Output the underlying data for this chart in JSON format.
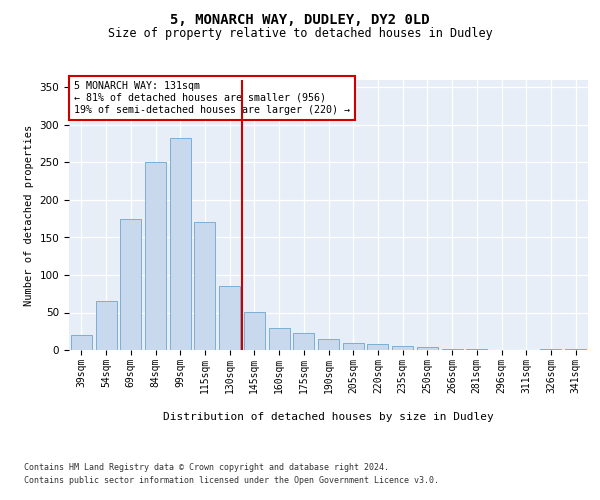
{
  "title1": "5, MONARCH WAY, DUDLEY, DY2 0LD",
  "title2": "Size of property relative to detached houses in Dudley",
  "xlabel": "Distribution of detached houses by size in Dudley",
  "ylabel": "Number of detached properties",
  "categories": [
    "39sqm",
    "54sqm",
    "69sqm",
    "84sqm",
    "99sqm",
    "115sqm",
    "130sqm",
    "145sqm",
    "160sqm",
    "175sqm",
    "190sqm",
    "205sqm",
    "220sqm",
    "235sqm",
    "250sqm",
    "266sqm",
    "281sqm",
    "296sqm",
    "311sqm",
    "326sqm",
    "341sqm"
  ],
  "values": [
    20,
    65,
    175,
    250,
    283,
    170,
    85,
    51,
    30,
    23,
    15,
    10,
    8,
    5,
    4,
    2,
    1,
    0,
    0,
    2,
    1
  ],
  "bar_color": "#c8d9ed",
  "bar_edge_color": "#7bafd4",
  "vline_x": 6.5,
  "vline_color": "#cc0000",
  "annotation_text": "5 MONARCH WAY: 131sqm\n← 81% of detached houses are smaller (956)\n19% of semi-detached houses are larger (220) →",
  "annotation_box_color": "#ffffff",
  "annotation_box_edge": "#cc0000",
  "ylim": [
    0,
    360
  ],
  "yticks": [
    0,
    50,
    100,
    150,
    200,
    250,
    300,
    350
  ],
  "plot_bg_color": "#e8eef7",
  "footer1": "Contains HM Land Registry data © Crown copyright and database right 2024.",
  "footer2": "Contains public sector information licensed under the Open Government Licence v3.0."
}
